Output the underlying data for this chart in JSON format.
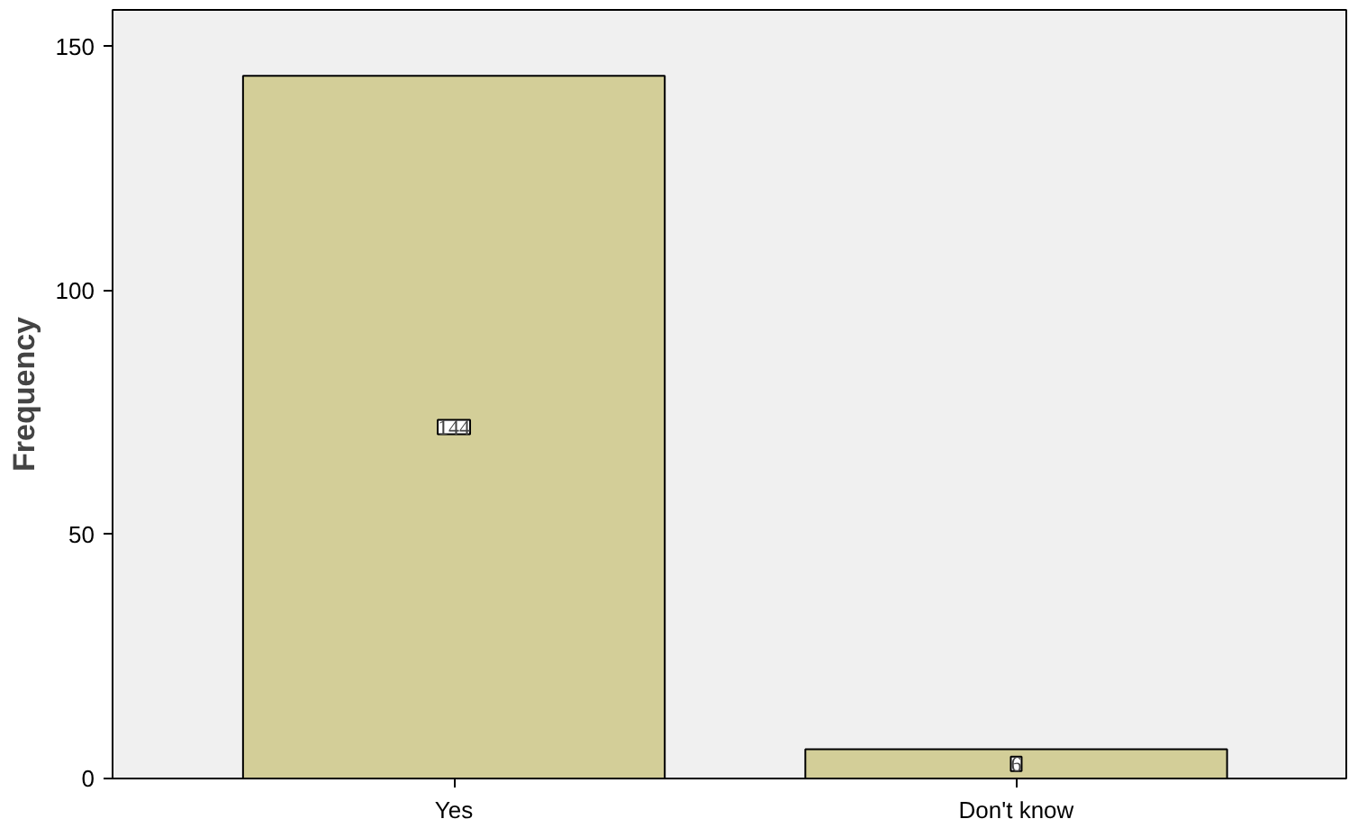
{
  "chart_data": {
    "type": "bar",
    "ylabel": "Frequency",
    "categories": [
      "Yes",
      "Don't know"
    ],
    "values": [
      144,
      6
    ],
    "color": "#d3ce98",
    "ylim": [
      0,
      157.5
    ],
    "yticks": [
      0,
      50,
      100,
      150
    ],
    "grid": false,
    "data_labels": true
  }
}
